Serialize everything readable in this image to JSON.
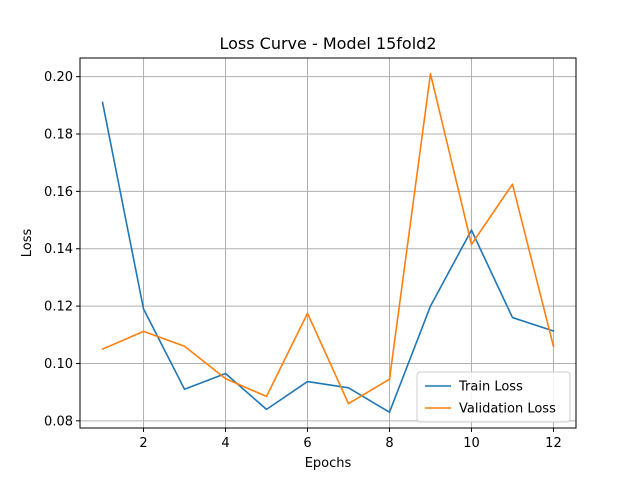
{
  "chart_data": {
    "type": "line",
    "title": "Loss Curve - Model 15fold2",
    "xlabel": "Epochs",
    "ylabel": "Loss",
    "x": [
      1,
      2,
      3,
      4,
      5,
      6,
      7,
      8,
      9,
      10,
      11,
      12
    ],
    "xlim": [
      0.45,
      12.55
    ],
    "ylim": [
      0.0775,
      0.2065
    ],
    "xticks": [
      2,
      4,
      6,
      8,
      10,
      12
    ],
    "yticks": [
      0.08,
      0.1,
      0.12,
      0.14,
      0.16,
      0.18,
      0.2
    ],
    "ytick_labels": [
      "0.08",
      "0.10",
      "0.12",
      "0.14",
      "0.16",
      "0.18",
      "0.20"
    ],
    "grid": true,
    "legend_position": "lower-right",
    "series": [
      {
        "name": "Train Loss",
        "color": "#1f77b4",
        "values": [
          0.191,
          0.119,
          0.091,
          0.0965,
          0.084,
          0.0937,
          0.0915,
          0.083,
          0.12,
          0.1465,
          0.116,
          0.1113
        ]
      },
      {
        "name": "Validation Loss",
        "color": "#ff7f0e",
        "values": [
          0.105,
          0.1112,
          0.106,
          0.0947,
          0.0885,
          0.1175,
          0.086,
          0.0945,
          0.201,
          0.1415,
          0.1625,
          0.106
        ]
      }
    ]
  }
}
